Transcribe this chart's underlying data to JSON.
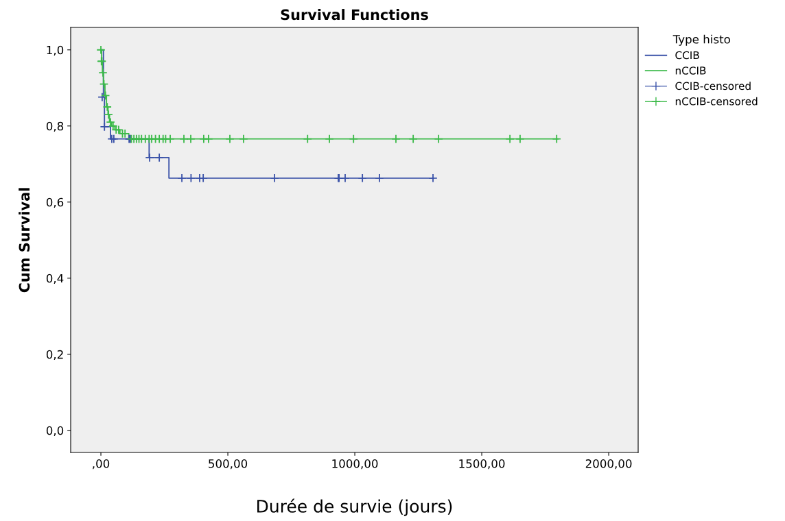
{
  "chart_data": {
    "type": "step",
    "title": "Survival Functions",
    "xlabel": "Durée de survie (jours)",
    "ylabel": "Cum Survival",
    "legend_title": "Type histo",
    "legend": "right",
    "grid": false,
    "xlim": [
      -119,
      2116
    ],
    "ylim": [
      -0.058,
      1.059
    ],
    "xticks": [
      {
        "value": 0,
        "label": ",00"
      },
      {
        "value": 500,
        "label": "500,00"
      },
      {
        "value": 1000,
        "label": "1000,00"
      },
      {
        "value": 1500,
        "label": "1500,00"
      },
      {
        "value": 2000,
        "label": "2000,00"
      }
    ],
    "yticks": [
      {
        "value": 0,
        "label": "0,0"
      },
      {
        "value": 0.2,
        "label": "0,2"
      },
      {
        "value": 0.4,
        "label": "0,4"
      },
      {
        "value": 0.6,
        "label": "0,6"
      },
      {
        "value": 0.8,
        "label": "0,8"
      },
      {
        "value": 1.0,
        "label": "1,0"
      }
    ],
    "series": [
      {
        "name": "CCIB",
        "color": "#3a52a8",
        "x": [
          0,
          10,
          14,
          38,
          190,
          268,
          1310
        ],
        "values": [
          1.0,
          0.876,
          0.798,
          0.766,
          0.717,
          0.663,
          0.663
        ]
      },
      {
        "name": "nCCIB",
        "color": "#3cba4a",
        "x": [
          0,
          3,
          6,
          10,
          16,
          22,
          28,
          34,
          42,
          55,
          75,
          110,
          1800
        ],
        "values": [
          1.0,
          0.97,
          0.94,
          0.91,
          0.88,
          0.85,
          0.83,
          0.81,
          0.8,
          0.79,
          0.78,
          0.766,
          0.766
        ]
      },
      {
        "name": "CCIB-censored",
        "type": "scatter",
        "marker": "cross",
        "color": "#3a52a8",
        "x": [
          5,
          14,
          43,
          51,
          111,
          116,
          192,
          230,
          319,
          355,
          389,
          403,
          684,
          935,
          938,
          962,
          1030,
          1097,
          1308
        ],
        "values": [
          0.876,
          0.798,
          0.766,
          0.766,
          0.766,
          0.766,
          0.717,
          0.717,
          0.663,
          0.663,
          0.663,
          0.663,
          0.663,
          0.663,
          0.663,
          0.663,
          0.663,
          0.663,
          0.663
        ]
      },
      {
        "name": "nCCIB-censored",
        "type": "scatter",
        "marker": "cross",
        "color": "#3cba4a",
        "x": [
          0,
          2,
          4,
          8,
          12,
          18,
          25,
          30,
          38,
          48,
          60,
          70,
          85,
          95,
          120,
          130,
          140,
          150,
          160,
          175,
          190,
          200,
          215,
          230,
          245,
          255,
          273,
          327,
          354,
          405,
          424,
          508,
          562,
          814,
          900,
          995,
          1162,
          1230,
          1330,
          1611,
          1651,
          1795
        ],
        "values": [
          1.0,
          0.97,
          0.97,
          0.94,
          0.91,
          0.88,
          0.85,
          0.83,
          0.81,
          0.8,
          0.79,
          0.79,
          0.78,
          0.78,
          0.766,
          0.766,
          0.766,
          0.766,
          0.766,
          0.766,
          0.766,
          0.766,
          0.766,
          0.766,
          0.766,
          0.766,
          0.766,
          0.766,
          0.766,
          0.766,
          0.766,
          0.766,
          0.766,
          0.766,
          0.766,
          0.766,
          0.766,
          0.766,
          0.766,
          0.766,
          0.766,
          0.766
        ]
      }
    ]
  }
}
